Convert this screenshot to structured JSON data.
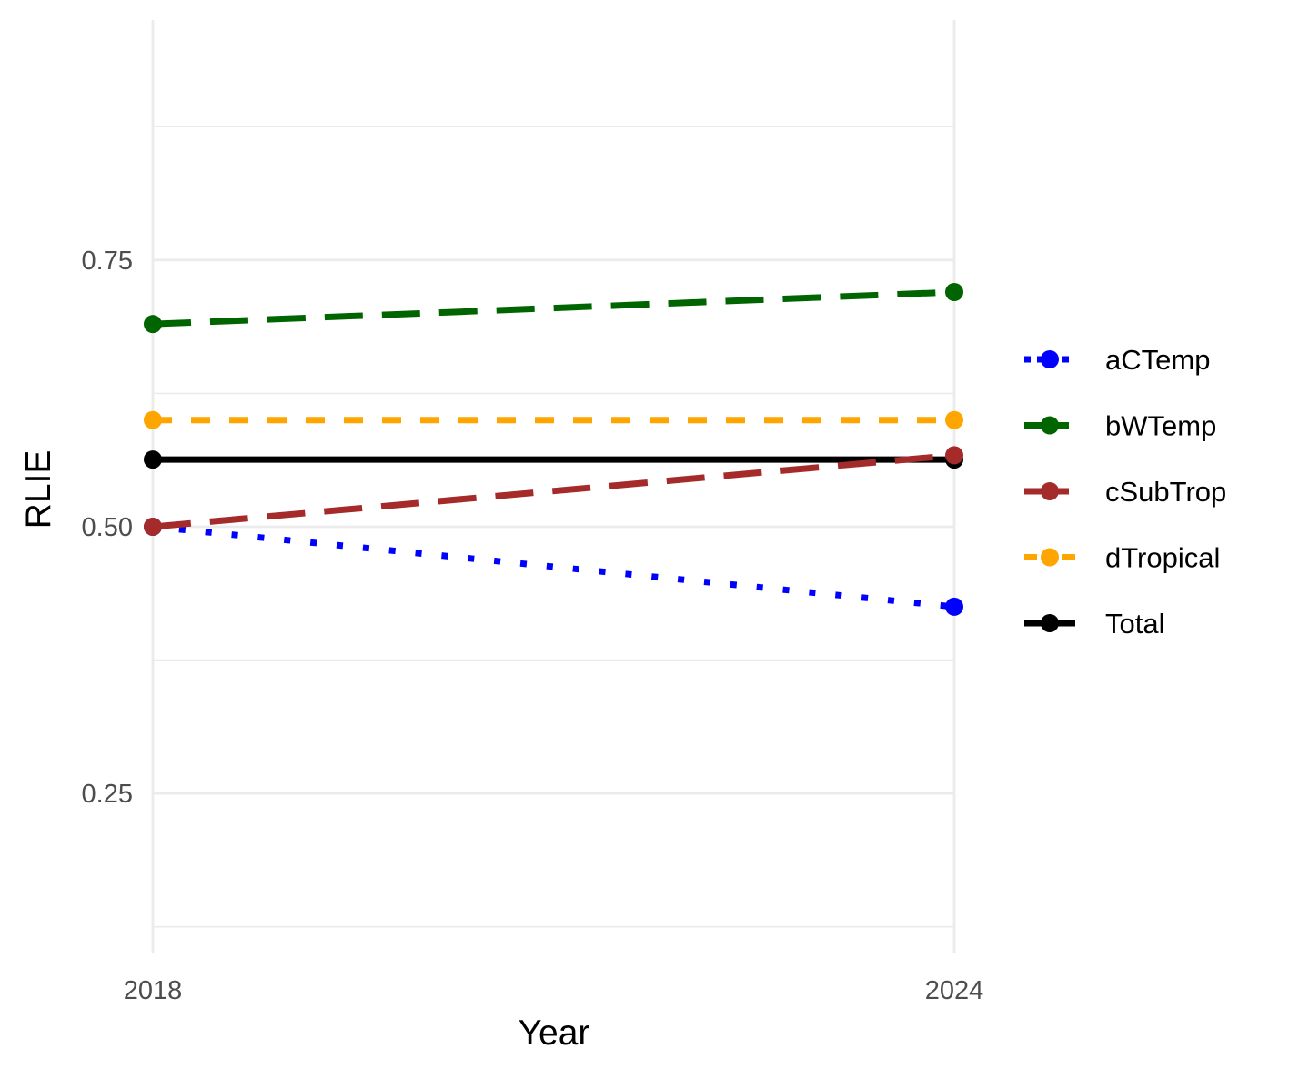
{
  "chart_data": {
    "type": "line",
    "title": "",
    "xlabel": "Year",
    "ylabel": "RLIE",
    "x": [
      2018,
      2024
    ],
    "x_ticks": [
      "2018",
      "2024"
    ],
    "y_ticks": [
      0.25,
      0.5,
      0.75
    ],
    "y_tick_labels": [
      "0.25",
      "0.50",
      "0.75"
    ],
    "y_minor_ticks": [
      0.125,
      0.375,
      0.625,
      0.875
    ],
    "ylim": [
      0.1,
      0.975
    ],
    "grid": true,
    "legend_position": "right",
    "series": [
      {
        "name": "aCTemp",
        "values": [
          0.5,
          0.425
        ],
        "color": "#0000ff",
        "linetype": "dotted"
      },
      {
        "name": "bWTemp",
        "values": [
          0.69,
          0.72
        ],
        "color": "#006400",
        "linetype": "longdash"
      },
      {
        "name": "cSubTrop",
        "values": [
          0.5,
          0.567
        ],
        "color": "#a52a2a",
        "linetype": "longdash"
      },
      {
        "name": "dTropical",
        "values": [
          0.6,
          0.6
        ],
        "color": "#ffa500",
        "linetype": "dashed"
      },
      {
        "name": "Total",
        "values": [
          0.563,
          0.563
        ],
        "color": "#000000",
        "linetype": "solid"
      }
    ]
  }
}
